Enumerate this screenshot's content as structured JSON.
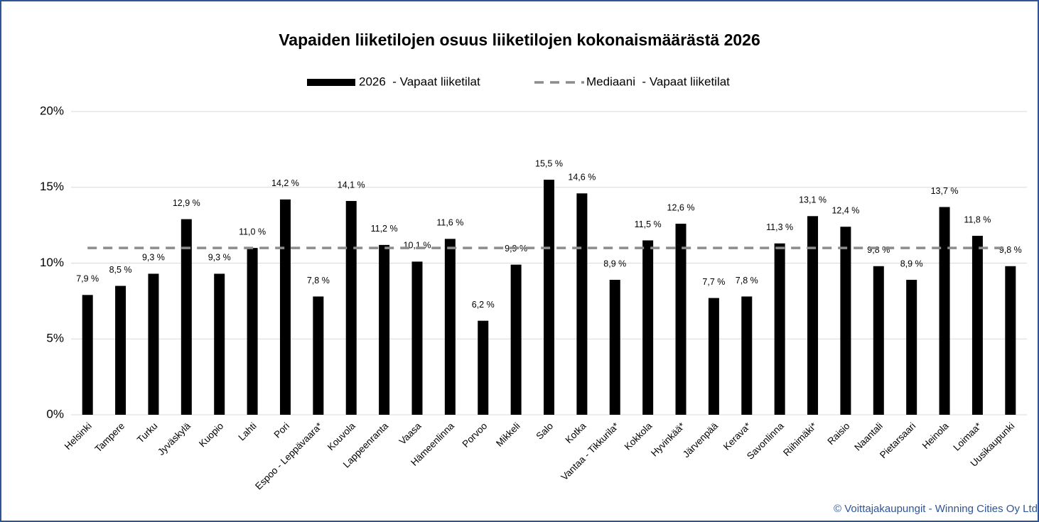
{
  "chart_data": {
    "type": "bar",
    "title": "Vapaiden liiketilojen osuus liiketilojen kokonaismäärästä 2026",
    "categories": [
      "Helsinki",
      "Tampere",
      "Turku",
      "Jyväskylä",
      "Kuopio",
      "Lahti",
      "Pori",
      "Espoo - Leppävaara*",
      "Kouvola",
      "Lappeenranta",
      "Vaasa",
      "Hämeenlinna",
      "Porvoo",
      "Mikkeli",
      "Salo",
      "Kotka",
      "Vantaa - Tikkurila*",
      "Kokkola",
      "Hyvinkää*",
      "Järvenpää",
      "Kerava*",
      "Savonlinna",
      "Riihimäki*",
      "Raisio",
      "Naantali",
      "Pietarsaari",
      "Heinola",
      "Loimaa*",
      "Uusikaupunki"
    ],
    "series": [
      {
        "name": "2026  - Vapaat liiketilat",
        "type": "bar",
        "color": "#000000",
        "values": [
          7.9,
          8.5,
          9.3,
          12.9,
          9.3,
          11.0,
          14.2,
          7.8,
          14.1,
          11.2,
          10.1,
          11.6,
          6.2,
          9.9,
          15.5,
          14.6,
          8.9,
          11.5,
          12.6,
          7.7,
          7.8,
          11.3,
          13.1,
          12.4,
          9.8,
          8.9,
          13.7,
          11.8,
          9.8
        ],
        "value_labels": [
          "7,9 %",
          "8,5 %",
          "9,3 %",
          "12,9 %",
          "9,3 %",
          "11,0 %",
          "14,2 %",
          "7,8 %",
          "14,1 %",
          "11,2 %",
          "10,1 %",
          "11,6 %",
          "6,2 %",
          "9,9 %",
          "15,5 %",
          "14,6 %",
          "8,9 %",
          "11,5 %",
          "12,6 %",
          "7,7 %",
          "7,8 %",
          "11,3 %",
          "13,1 %",
          "12,4 %",
          "9,8 %",
          "8,9 %",
          "13,7 %",
          "11,8 %",
          "9,8 %"
        ]
      },
      {
        "name": "Mediaani  - Vapaat liiketilat",
        "type": "line",
        "dashed": true,
        "color": "#8c8c8c",
        "values": [
          11,
          11,
          11,
          11,
          11,
          11,
          11,
          11,
          11,
          11,
          11,
          11,
          11,
          11,
          11,
          11,
          11,
          11,
          11,
          11,
          11,
          11,
          11,
          11,
          11,
          11,
          11,
          11,
          11
        ]
      }
    ],
    "ylim": [
      0,
      20
    ],
    "yticks": [
      {
        "value": 0,
        "label": "0%"
      },
      {
        "value": 5,
        "label": "5%"
      },
      {
        "value": 10,
        "label": "10%"
      },
      {
        "value": 15,
        "label": "15%"
      },
      {
        "value": 20,
        "label": "20%"
      }
    ],
    "grid": true,
    "legend": "top",
    "annotation": "© Voittajakaupungit - Winning Cities Oy Ltd"
  }
}
